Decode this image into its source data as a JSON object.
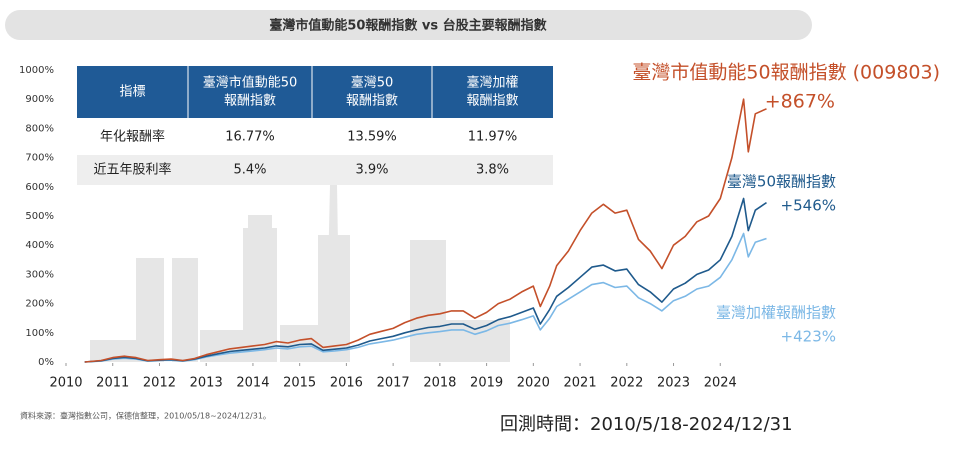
{
  "chart_data": {
    "type": "line",
    "title": "臺灣市值動能50報酬指數 vs 台股主要報酬指數",
    "x": [
      2010.4,
      2010.75,
      2011,
      2011.25,
      2011.5,
      2011.75,
      2012,
      2012.25,
      2012.5,
      2012.75,
      2013,
      2013.25,
      2013.5,
      2013.75,
      2014,
      2014.25,
      2014.5,
      2014.75,
      2015,
      2015.25,
      2015.5,
      2015.75,
      2016,
      2016.25,
      2016.5,
      2016.75,
      2017,
      2017.25,
      2017.5,
      2017.75,
      2018,
      2018.25,
      2018.5,
      2018.75,
      2019,
      2019.25,
      2019.5,
      2019.75,
      2020,
      2020.15,
      2020.35,
      2020.5,
      2020.75,
      2021,
      2021.25,
      2021.5,
      2021.75,
      2022,
      2022.25,
      2022.5,
      2022.75,
      2023,
      2023.25,
      2023.5,
      2023.75,
      2024,
      2024.25,
      2024.5,
      2024.6,
      2024.75,
      2024.99
    ],
    "series": [
      {
        "name": "臺灣市值動能50報酬指數 (009803)",
        "color": "#c4502a",
        "end_label": "+867%",
        "values": [
          0,
          5,
          15,
          20,
          15,
          5,
          8,
          10,
          5,
          12,
          25,
          35,
          45,
          50,
          55,
          60,
          70,
          65,
          75,
          80,
          50,
          55,
          60,
          75,
          95,
          105,
          115,
          135,
          150,
          160,
          165,
          175,
          175,
          150,
          170,
          200,
          215,
          240,
          260,
          190,
          260,
          330,
          380,
          450,
          510,
          540,
          510,
          520,
          420,
          380,
          320,
          400,
          430,
          480,
          500,
          560,
          700,
          900,
          720,
          850,
          867
        ]
      },
      {
        "name": "臺灣50報酬指數",
        "color": "#1f5a8c",
        "end_label": "+546%",
        "values": [
          0,
          4,
          12,
          16,
          12,
          4,
          6,
          8,
          4,
          10,
          20,
          28,
          36,
          40,
          44,
          48,
          55,
          52,
          60,
          62,
          40,
          44,
          48,
          58,
          72,
          80,
          88,
          100,
          110,
          118,
          122,
          130,
          130,
          112,
          125,
          145,
          155,
          170,
          185,
          130,
          180,
          225,
          255,
          290,
          325,
          332,
          312,
          318,
          265,
          240,
          205,
          250,
          270,
          300,
          315,
          350,
          430,
          560,
          450,
          520,
          546
        ]
      },
      {
        "name": "臺灣加權報酬指數",
        "color": "#7cb8e6",
        "end_label": "+423%",
        "values": [
          0,
          3,
          10,
          13,
          10,
          3,
          5,
          6,
          3,
          8,
          17,
          24,
          30,
          34,
          38,
          42,
          48,
          45,
          52,
          54,
          35,
          38,
          42,
          50,
          62,
          68,
          75,
          85,
          95,
          100,
          104,
          110,
          110,
          95,
          107,
          125,
          133,
          145,
          158,
          110,
          150,
          190,
          215,
          240,
          265,
          272,
          255,
          260,
          220,
          200,
          175,
          210,
          225,
          250,
          260,
          290,
          350,
          440,
          360,
          410,
          423
        ]
      }
    ],
    "xlim": [
      2010,
      2025
    ],
    "xticks": [
      2010,
      2011,
      2012,
      2013,
      2014,
      2015,
      2016,
      2017,
      2018,
      2019,
      2020,
      2021,
      2022,
      2023,
      2024
    ],
    "ylim": [
      0,
      1000
    ],
    "yticks": [
      {
        "value": 0,
        "label": "0%"
      },
      {
        "value": 100,
        "label": "100%"
      },
      {
        "value": 200,
        "label": "200%"
      },
      {
        "value": 300,
        "label": "300%"
      },
      {
        "value": 400,
        "label": "400%"
      },
      {
        "value": 500,
        "label": "500%"
      },
      {
        "value": 600,
        "label": "600%"
      },
      {
        "value": 700,
        "label": "700%"
      },
      {
        "value": 800,
        "label": "800%"
      },
      {
        "value": 900,
        "label": "900%"
      },
      {
        "value": 1000,
        "label": "1000%"
      }
    ],
    "grid": false,
    "table": {
      "header": [
        [
          "指標"
        ],
        [
          "臺灣市值動能50",
          "報酬指數"
        ],
        [
          "臺灣50",
          "報酬指數"
        ],
        [
          "臺灣加權",
          "報酬指數"
        ]
      ],
      "rows": [
        [
          "年化報酬率",
          "16.77%",
          "13.59%",
          "11.97%"
        ],
        [
          "近五年股利率",
          "5.4%",
          "3.9%",
          "3.8%"
        ]
      ]
    },
    "source": "資料來源：臺灣指數公司，保德信整理，2010/05/18~2024/12/31。",
    "period": "回測時間：2010/5/18-2024/12/31"
  }
}
